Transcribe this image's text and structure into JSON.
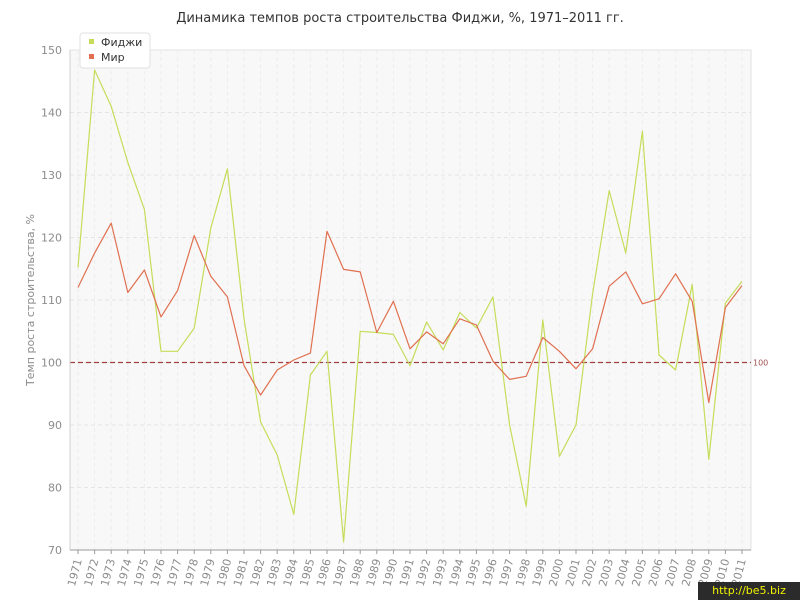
{
  "chart_data": {
    "type": "line",
    "title": "Динамика темпов роста строительства Фиджи, %, 1971–2011 гг.",
    "xlabel": "",
    "ylabel": "Темп роста строительства, %",
    "ylim": [
      70,
      150
    ],
    "yticks": [
      70,
      80,
      90,
      100,
      110,
      120,
      130,
      140,
      150
    ],
    "grid": true,
    "legend_position": "top-left",
    "x": [
      "1971",
      "1972",
      "1973",
      "1974",
      "1975",
      "1976",
      "1977",
      "1978",
      "1979",
      "1980",
      "1981",
      "1982",
      "1983",
      "1984",
      "1985",
      "1986",
      "1987",
      "1988",
      "1989",
      "1990",
      "1991",
      "1992",
      "1993",
      "1994",
      "1995",
      "1996",
      "1997",
      "1998",
      "1999",
      "2000",
      "2001",
      "2002",
      "2003",
      "2004",
      "2005",
      "2006",
      "2007",
      "2008",
      "2009",
      "2010",
      "2011"
    ],
    "series": [
      {
        "name": "Фиджи",
        "color": "#c5dd5a",
        "values": [
          115.2,
          146.8,
          141.0,
          132.0,
          124.5,
          101.8,
          101.8,
          105.5,
          121.5,
          131.0,
          107.0,
          90.5,
          85.2,
          75.7,
          98.0,
          101.8,
          71.3,
          105.0,
          104.8,
          104.5,
          99.5,
          106.5,
          102.0,
          108.0,
          105.5,
          110.5,
          90.0,
          77.0,
          106.8,
          85.0,
          90.0,
          111.0,
          127.5,
          117.5,
          137.0,
          101.2,
          98.8,
          112.5,
          84.5,
          109.5,
          113.0
        ]
      },
      {
        "name": "Мир",
        "color": "#e07050",
        "values": [
          112.0,
          117.5,
          122.3,
          111.2,
          114.8,
          107.3,
          111.5,
          120.3,
          113.8,
          110.5,
          99.5,
          94.8,
          98.8,
          100.4,
          101.5,
          121.0,
          114.9,
          114.5,
          104.8,
          109.8,
          102.2,
          104.9,
          103.0,
          107.0,
          106.0,
          100.2,
          97.3,
          97.8,
          104.0,
          101.8,
          99.0,
          102.2,
          112.2,
          114.5,
          109.4,
          110.2,
          114.2,
          109.8,
          93.6,
          108.8,
          112.3
        ]
      }
    ],
    "reference_line": {
      "value": 100,
      "label": "100",
      "color": "#a04040"
    }
  },
  "watermark": "http://be5.biz"
}
